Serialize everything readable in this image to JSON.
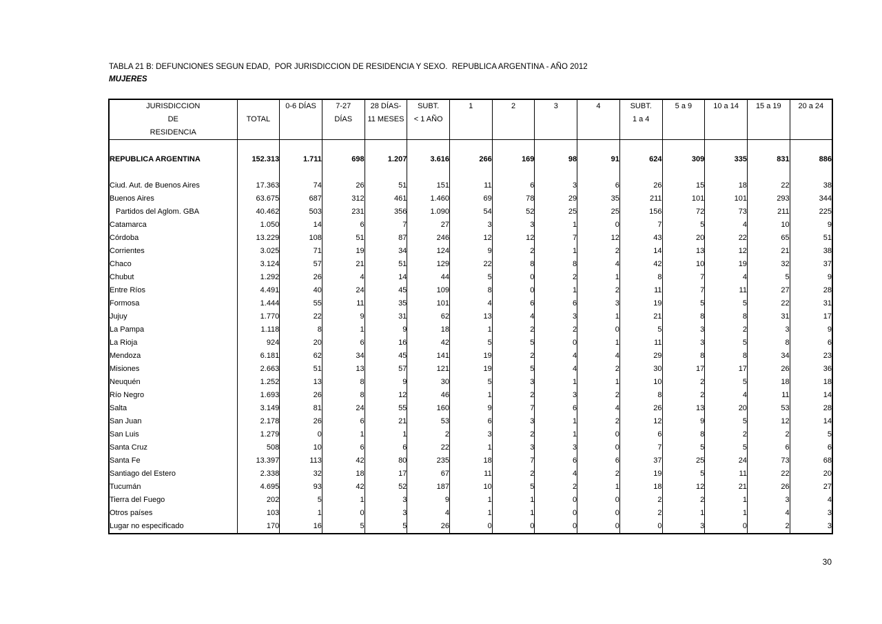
{
  "page": {
    "title": "TABLA 21 B: DEFUNCIONES SEGUN EDAD,  POR JURISDICCION DE RESIDENCIA Y SEXO.  REPUBLICA ARGENTINA - AÑO 2012",
    "subtitle": "MUJERES",
    "page_number": "30"
  },
  "table": {
    "jurisdiction_header_lines": [
      "JURISDICCION",
      "DE",
      "RESIDENCIA"
    ],
    "column_headers": [
      {
        "id": "total",
        "lines": [
          "",
          "TOTAL",
          ""
        ]
      },
      {
        "id": "0-6-dias",
        "lines": [
          "0-6 DÍAS",
          "",
          ""
        ]
      },
      {
        "id": "7-27-dias",
        "lines": [
          "7-27",
          "DÍAS",
          ""
        ]
      },
      {
        "id": "28-dias-11-meses",
        "lines": [
          "28 DÍAS-",
          "11 MESES",
          ""
        ]
      },
      {
        "id": "subt-menos-1-ano",
        "lines": [
          "SUBT.",
          "< 1 AÑO",
          ""
        ]
      },
      {
        "id": "edad-1",
        "lines": [
          "1",
          "",
          ""
        ]
      },
      {
        "id": "edad-2",
        "lines": [
          "2",
          "",
          ""
        ]
      },
      {
        "id": "edad-3",
        "lines": [
          "3",
          "",
          ""
        ]
      },
      {
        "id": "edad-4",
        "lines": [
          "4",
          "",
          ""
        ]
      },
      {
        "id": "subt-1-a-4",
        "lines": [
          "SUBT.",
          "1 a 4",
          ""
        ]
      },
      {
        "id": "5-a-9",
        "lines": [
          "5 a 9",
          "",
          ""
        ]
      },
      {
        "id": "10-a-14",
        "lines": [
          "10 a 14",
          "",
          ""
        ]
      },
      {
        "id": "15-a-19",
        "lines": [
          "15 a 19",
          "",
          ""
        ]
      },
      {
        "id": "20-a-24",
        "lines": [
          "20 a 24",
          "",
          ""
        ]
      }
    ],
    "rows": [
      {
        "label": "REPUBLICA ARGENTINA",
        "bold": true,
        "gap_before": true,
        "gap_after": true,
        "values": [
          "152.313",
          "1.711",
          "698",
          "1.207",
          "3.616",
          "266",
          "169",
          "98",
          "91",
          "624",
          "309",
          "335",
          "831",
          "886"
        ]
      },
      {
        "label": "Ciud. Aut. de  Buenos Aires",
        "values": [
          "17.363",
          "74",
          "26",
          "51",
          "151",
          "11",
          "6",
          "3",
          "6",
          "26",
          "15",
          "18",
          "22",
          "38"
        ]
      },
      {
        "label": "Buenos Aires",
        "values": [
          "63.675",
          "687",
          "312",
          "461",
          "1.460",
          "69",
          "78",
          "29",
          "35",
          "211",
          "101",
          "101",
          "293",
          "344"
        ]
      },
      {
        "label": "Partidos del Aglom. GBA",
        "indent": true,
        "values": [
          "40.462",
          "503",
          "231",
          "356",
          "1.090",
          "54",
          "52",
          "25",
          "25",
          "156",
          "72",
          "73",
          "211",
          "225"
        ]
      },
      {
        "label": "Catamarca",
        "values": [
          "1.050",
          "14",
          "6",
          "7",
          "27",
          "3",
          "3",
          "1",
          "0",
          "7",
          "5",
          "4",
          "10",
          "9"
        ]
      },
      {
        "label": "Córdoba",
        "values": [
          "13.229",
          "108",
          "51",
          "87",
          "246",
          "12",
          "12",
          "7",
          "12",
          "43",
          "20",
          "22",
          "65",
          "51"
        ]
      },
      {
        "label": "Corrientes",
        "values": [
          "3.025",
          "71",
          "19",
          "34",
          "124",
          "9",
          "2",
          "1",
          "2",
          "14",
          "13",
          "12",
          "21",
          "38"
        ]
      },
      {
        "label": "Chaco",
        "values": [
          "3.124",
          "57",
          "21",
          "51",
          "129",
          "22",
          "8",
          "8",
          "4",
          "42",
          "10",
          "19",
          "32",
          "37"
        ]
      },
      {
        "label": "Chubut",
        "values": [
          "1.292",
          "26",
          "4",
          "14",
          "44",
          "5",
          "0",
          "2",
          "1",
          "8",
          "7",
          "4",
          "5",
          "9"
        ]
      },
      {
        "label": "Entre Ríos",
        "values": [
          "4.491",
          "40",
          "24",
          "45",
          "109",
          "8",
          "0",
          "1",
          "2",
          "11",
          "7",
          "11",
          "27",
          "28"
        ]
      },
      {
        "label": "Formosa",
        "values": [
          "1.444",
          "55",
          "11",
          "35",
          "101",
          "4",
          "6",
          "6",
          "3",
          "19",
          "5",
          "5",
          "22",
          "31"
        ]
      },
      {
        "label": "Jujuy",
        "values": [
          "1.770",
          "22",
          "9",
          "31",
          "62",
          "13",
          "4",
          "3",
          "1",
          "21",
          "8",
          "8",
          "31",
          "17"
        ]
      },
      {
        "label": "La Pampa",
        "values": [
          "1.118",
          "8",
          "1",
          "9",
          "18",
          "1",
          "2",
          "2",
          "0",
          "5",
          "3",
          "2",
          "3",
          "9"
        ]
      },
      {
        "label": "La Rioja",
        "values": [
          "924",
          "20",
          "6",
          "16",
          "42",
          "5",
          "5",
          "0",
          "1",
          "11",
          "3",
          "5",
          "8",
          "6"
        ]
      },
      {
        "label": "Mendoza",
        "values": [
          "6.181",
          "62",
          "34",
          "45",
          "141",
          "19",
          "2",
          "4",
          "4",
          "29",
          "8",
          "8",
          "34",
          "23"
        ]
      },
      {
        "label": "Misiones",
        "values": [
          "2.663",
          "51",
          "13",
          "57",
          "121",
          "19",
          "5",
          "4",
          "2",
          "30",
          "17",
          "17",
          "26",
          "36"
        ]
      },
      {
        "label": "Neuquén",
        "values": [
          "1.252",
          "13",
          "8",
          "9",
          "30",
          "5",
          "3",
          "1",
          "1",
          "10",
          "2",
          "5",
          "18",
          "18"
        ]
      },
      {
        "label": "Río Negro",
        "values": [
          "1.693",
          "26",
          "8",
          "12",
          "46",
          "1",
          "2",
          "3",
          "2",
          "8",
          "2",
          "4",
          "11",
          "14"
        ]
      },
      {
        "label": "Salta",
        "values": [
          "3.149",
          "81",
          "24",
          "55",
          "160",
          "9",
          "7",
          "6",
          "4",
          "26",
          "13",
          "20",
          "53",
          "28"
        ]
      },
      {
        "label": "San Juan",
        "values": [
          "2.178",
          "26",
          "6",
          "21",
          "53",
          "6",
          "3",
          "1",
          "2",
          "12",
          "9",
          "5",
          "12",
          "14"
        ]
      },
      {
        "label": "San Luis",
        "values": [
          "1.279",
          "0",
          "1",
          "1",
          "2",
          "3",
          "2",
          "1",
          "0",
          "6",
          "8",
          "2",
          "2",
          "5"
        ]
      },
      {
        "label": "Santa Cruz",
        "values": [
          "508",
          "10",
          "6",
          "6",
          "22",
          "1",
          "3",
          "3",
          "0",
          "7",
          "5",
          "5",
          "6",
          "6"
        ]
      },
      {
        "label": "Santa Fe",
        "values": [
          "13.397",
          "113",
          "42",
          "80",
          "235",
          "18",
          "7",
          "6",
          "6",
          "37",
          "25",
          "24",
          "73",
          "68"
        ]
      },
      {
        "label": "Santiago del Estero",
        "values": [
          "2.338",
          "32",
          "18",
          "17",
          "67",
          "11",
          "2",
          "4",
          "2",
          "19",
          "5",
          "11",
          "22",
          "20"
        ]
      },
      {
        "label": "Tucumán",
        "values": [
          "4.695",
          "93",
          "42",
          "52",
          "187",
          "10",
          "5",
          "2",
          "1",
          "18",
          "12",
          "21",
          "26",
          "27"
        ]
      },
      {
        "label": "Tierra del Fuego",
        "values": [
          "202",
          "5",
          "1",
          "3",
          "9",
          "1",
          "1",
          "0",
          "0",
          "2",
          "2",
          "1",
          "3",
          "4"
        ]
      },
      {
        "label": "Otros países",
        "values": [
          "103",
          "1",
          "0",
          "3",
          "4",
          "1",
          "1",
          "0",
          "0",
          "2",
          "1",
          "1",
          "4",
          "3"
        ]
      },
      {
        "label": "Lugar no especificado",
        "values": [
          "170",
          "16",
          "5",
          "5",
          "26",
          "0",
          "0",
          "0",
          "0",
          "0",
          "3",
          "0",
          "2",
          "3"
        ]
      }
    ]
  }
}
